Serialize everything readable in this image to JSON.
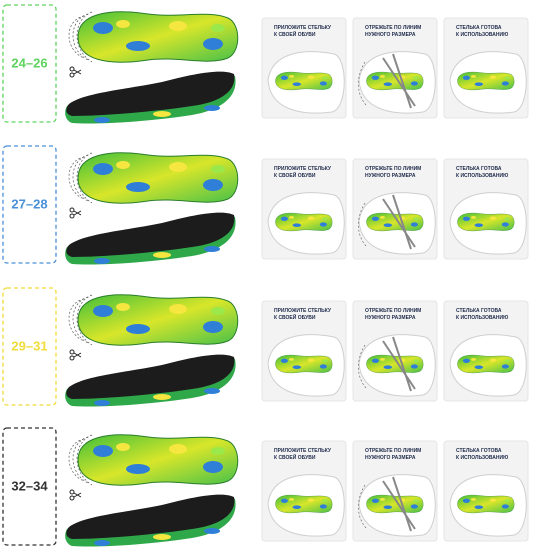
{
  "sizes": [
    {
      "label": "24–26",
      "color": "#5fd35f"
    },
    {
      "label": "27–28",
      "color": "#4a90d9"
    },
    {
      "label": "29–31",
      "color": "#f0dc3a"
    },
    {
      "label": "32–34",
      "color": "#333333"
    }
  ],
  "steps": [
    [
      "ПРИЛОЖИТЕ СТЕЛЬКУ",
      "К СВОЕЙ ОБУВИ"
    ],
    [
      "ОТРЕЖЬТЕ ПО ЛИНИМ",
      "НУЖНОГО РАЗМЕРА"
    ],
    [
      "СТЕЛЬКА ГОТОВА",
      "К ИСПОЛЬЗОВАНИЮ"
    ]
  ]
}
